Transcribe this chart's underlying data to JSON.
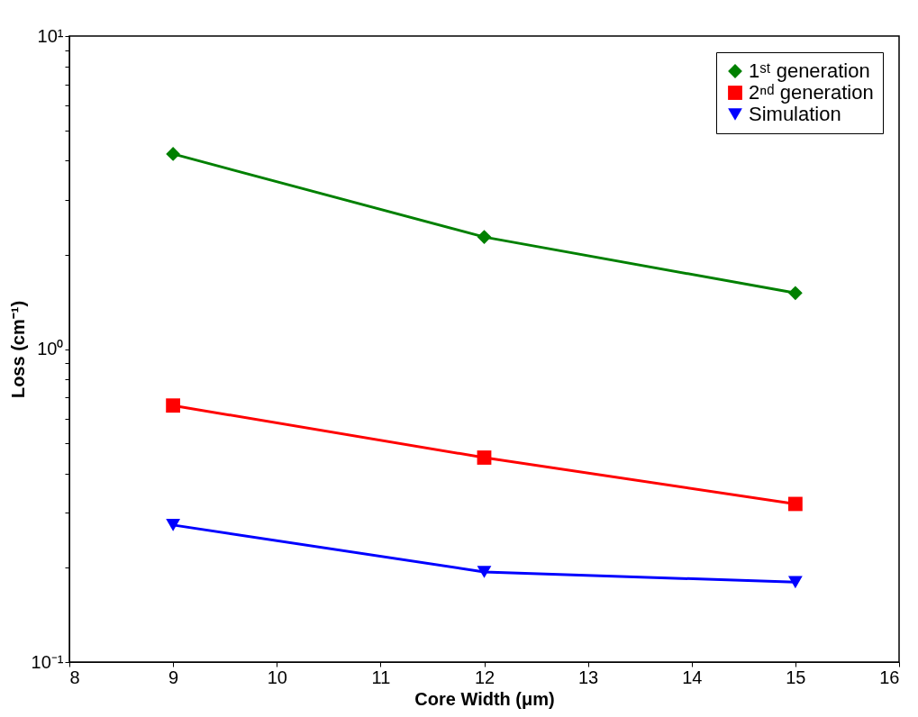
{
  "chart_data": {
    "type": "line",
    "xlabel": "Core Width (μm)",
    "ylabel": "Loss (cm⁻¹)",
    "x": [
      9,
      12,
      15
    ],
    "series": [
      {
        "name": "1ˢᵗ generation",
        "color": "#008000",
        "marker": "diamond",
        "values": [
          4.2,
          2.28,
          1.51
        ]
      },
      {
        "name": "2ⁿᵈ generation",
        "color": "#ff0000",
        "marker": "square",
        "values": [
          0.66,
          0.45,
          0.32
        ]
      },
      {
        "name": "Simulation",
        "color": "#0000ff",
        "marker": "triangle-down",
        "values": [
          0.274,
          0.194,
          0.18
        ]
      }
    ],
    "xlim": [
      8,
      16
    ],
    "xticks": [
      8,
      9,
      10,
      11,
      12,
      13,
      14,
      15,
      16
    ],
    "ylim": [
      0.1,
      10
    ],
    "yticks": [
      {
        "value": 0.1,
        "label": "10⁻¹"
      },
      {
        "value": 0.2,
        "label": null
      },
      {
        "value": 0.3,
        "label": null
      },
      {
        "value": 0.4,
        "label": null
      },
      {
        "value": 0.5,
        "label": null
      },
      {
        "value": 0.6,
        "label": null
      },
      {
        "value": 0.7,
        "label": null
      },
      {
        "value": 0.8,
        "label": null
      },
      {
        "value": 0.9,
        "label": null
      },
      {
        "value": 1,
        "label": "10⁰"
      },
      {
        "value": 2,
        "label": null
      },
      {
        "value": 3,
        "label": null
      },
      {
        "value": 4,
        "label": null
      },
      {
        "value": 5,
        "label": null
      },
      {
        "value": 6,
        "label": null
      },
      {
        "value": 7,
        "label": null
      },
      {
        "value": 8,
        "label": null
      },
      {
        "value": 9,
        "label": null
      },
      {
        "value": 10,
        "label": "10¹"
      }
    ],
    "log": "y",
    "grid": false,
    "legend": "top right",
    "line_style": "solid"
  }
}
